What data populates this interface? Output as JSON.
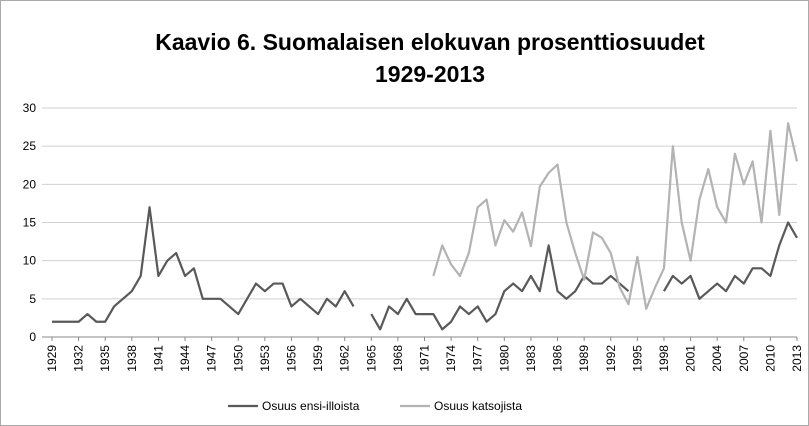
{
  "chart_data": {
    "type": "line",
    "title": [
      "Kaavio 6. Suomalaisen elokuvan prosenttiosuudet",
      "1929-2013"
    ],
    "x": [
      1929,
      1930,
      1931,
      1932,
      1933,
      1934,
      1935,
      1936,
      1937,
      1938,
      1939,
      1940,
      1941,
      1942,
      1943,
      1944,
      1945,
      1946,
      1947,
      1948,
      1949,
      1950,
      1951,
      1952,
      1953,
      1954,
      1955,
      1956,
      1957,
      1958,
      1959,
      1960,
      1961,
      1962,
      1963,
      1964,
      1965,
      1966,
      1967,
      1968,
      1969,
      1970,
      1971,
      1972,
      1973,
      1974,
      1975,
      1976,
      1977,
      1978,
      1979,
      1980,
      1981,
      1982,
      1983,
      1984,
      1985,
      1986,
      1987,
      1988,
      1989,
      1990,
      1991,
      1992,
      1993,
      1994,
      1995,
      1996,
      1997,
      1998,
      1999,
      2000,
      2001,
      2002,
      2003,
      2004,
      2005,
      2006,
      2007,
      2008,
      2009,
      2010,
      2011,
      2012,
      2013
    ],
    "series": [
      {
        "name": "Osuus ensi-illoista",
        "color": "#595959",
        "values": [
          2,
          2,
          2,
          2,
          3,
          2,
          2,
          4,
          5,
          6,
          8,
          17,
          8,
          10,
          11,
          8,
          9,
          5,
          5,
          5,
          4,
          3,
          5,
          7,
          6,
          7,
          7,
          4,
          5,
          4,
          3,
          5,
          4,
          6,
          4,
          null,
          3,
          1,
          4,
          3,
          5,
          3,
          3,
          3,
          1,
          2,
          4,
          3,
          4,
          2,
          3,
          6,
          7,
          6,
          8,
          6,
          12,
          6,
          5,
          6,
          8,
          7,
          7,
          8,
          7,
          6,
          null,
          null,
          null,
          6,
          8,
          7,
          8,
          5,
          6,
          7,
          6,
          8,
          7,
          9,
          9,
          8,
          12,
          15,
          13
        ]
      },
      {
        "name": "Osuus katsojista",
        "color": "#b3b3b3",
        "values": [
          null,
          null,
          null,
          null,
          null,
          null,
          null,
          null,
          null,
          null,
          null,
          null,
          null,
          null,
          null,
          null,
          null,
          null,
          null,
          null,
          null,
          null,
          null,
          null,
          null,
          null,
          null,
          null,
          null,
          null,
          null,
          null,
          null,
          null,
          null,
          null,
          null,
          null,
          null,
          null,
          null,
          null,
          null,
          8,
          12,
          9.5,
          8,
          11,
          17,
          18,
          12,
          15.3,
          13.8,
          16.3,
          11.9,
          19.7,
          21.5,
          22.6,
          15,
          11,
          7.5,
          13.7,
          13,
          11,
          6.5,
          4.3,
          10.5,
          3.7,
          6.5,
          9,
          25,
          15,
          10,
          18,
          22,
          17,
          15,
          24,
          20,
          23,
          15,
          27,
          16,
          28,
          23
        ]
      }
    ],
    "xlim": [
      1929,
      2013
    ],
    "xticks": [
      1929,
      1932,
      1935,
      1938,
      1941,
      1944,
      1947,
      1950,
      1953,
      1956,
      1959,
      1962,
      1965,
      1968,
      1971,
      1974,
      1977,
      1980,
      1983,
      1986,
      1989,
      1992,
      1995,
      1998,
      2001,
      2004,
      2007,
      2010,
      2013
    ],
    "ylim": [
      0,
      30
    ],
    "yticks": [
      0,
      5,
      10,
      15,
      20,
      25,
      30
    ],
    "grid": true,
    "legend": "bottom"
  }
}
